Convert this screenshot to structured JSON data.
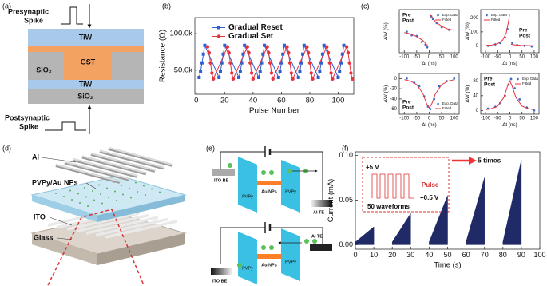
{
  "panels": {
    "a": {
      "label": "(a)",
      "pre": [
        "Presynaptic",
        "Spike"
      ],
      "tiw_top": "TiW",
      "gst": "GST",
      "sio2_mid": "SiO₂",
      "tiw_bottom": "TiW",
      "sio2_bottom": "SiO₂",
      "post": [
        "Postsynaptic",
        "Spike"
      ]
    },
    "b": {
      "label": "(b)"
    },
    "c": {
      "label": "(c)"
    },
    "d": {
      "label": "(d)",
      "al": "Al",
      "pvpy": "PVPy/Au NPs",
      "ito": "ITO",
      "glass": "Glass"
    },
    "e": {
      "label": "(e)",
      "top": {
        "ito": "ITO BE",
        "pvpy_left": "PVPy",
        "au": "Au NPs",
        "pvpy_right": "PVPy",
        "al": "Al TE"
      },
      "bottom": {
        "ito": "ITO BE",
        "pvpy_left": "PVPy",
        "au": "Au NPs",
        "pvpy_right": "PVPy",
        "al": "Al TE"
      }
    },
    "f": {
      "label": "(f)",
      "inset_high": "+5 V",
      "inset_pulse": "Pulse",
      "inset_low": "+0.5 V",
      "inset_count": "50 waveforms",
      "repeat": "5 times"
    }
  },
  "chart_data": [
    {
      "type": "line",
      "x_label": "Pulse Number",
      "y_label": "Resistance (Ω)",
      "xlim": [
        -1,
        111
      ],
      "xticks": [
        0,
        20,
        40,
        60,
        80,
        100
      ],
      "ylim": [
        17000,
        122000
      ],
      "yticks": [
        {
          "value": 50000,
          "label": "50.0k"
        },
        {
          "value": 100000,
          "label": "100.0k"
        }
      ],
      "legend": "upper left",
      "series": [
        {
          "name": "Gradual Reset",
          "color": "#2f5fd0",
          "marker": "square",
          "x": [
            2,
            3,
            4,
            5,
            6,
            16,
            17,
            18,
            19,
            20,
            30,
            31,
            32,
            33,
            34,
            44,
            45,
            46,
            47,
            48,
            58,
            59,
            60,
            61,
            62,
            72,
            73,
            74,
            75,
            76,
            86,
            87,
            88,
            89,
            90,
            100,
            101,
            102,
            103,
            104
          ],
          "values": [
            40000,
            48000,
            60000,
            72000,
            84000,
            40000,
            48000,
            60000,
            72000,
            84000,
            40000,
            48000,
            60000,
            72000,
            84000,
            40000,
            48000,
            60000,
            72000,
            84000,
            40000,
            48000,
            60000,
            72000,
            84000,
            40000,
            48000,
            60000,
            72000,
            84000,
            40000,
            48000,
            60000,
            72000,
            84000,
            40000,
            48000,
            60000,
            72000,
            84000
          ]
        },
        {
          "name": "Gradual Set",
          "color": "#e8323c",
          "marker": "circle",
          "x": [
            8,
            9,
            10,
            11,
            12,
            22,
            23,
            24,
            25,
            26,
            36,
            37,
            38,
            39,
            40,
            50,
            51,
            52,
            53,
            54,
            64,
            65,
            66,
            67,
            68,
            78,
            79,
            80,
            81,
            82,
            92,
            93,
            94,
            95,
            96,
            106,
            107,
            108,
            109,
            110
          ],
          "values": [
            82000,
            74000,
            60000,
            46000,
            38000,
            82000,
            74000,
            60000,
            46000,
            38000,
            82000,
            74000,
            60000,
            46000,
            38000,
            82000,
            74000,
            60000,
            46000,
            38000,
            82000,
            74000,
            60000,
            46000,
            38000,
            82000,
            74000,
            60000,
            46000,
            38000,
            82000,
            74000,
            60000,
            46000,
            38000,
            82000,
            74000,
            60000,
            46000,
            38000
          ]
        }
      ]
    },
    {
      "type": "scatter",
      "x_label": "Δt (ns)",
      "y_label": "ΔW (%)",
      "xlim": [
        -120,
        120
      ],
      "xticks": [
        -100,
        -50,
        0,
        50,
        100
      ],
      "ylim": [
        -80,
        80
      ],
      "legend": "upper right",
      "annotations": [
        "Pre",
        "Post"
      ],
      "series": [
        {
          "name": "Exp. Data",
          "color": "#3b6fc9",
          "draw": "points",
          "x": [
            -90,
            -70,
            -50,
            -30,
            -15,
            -8,
            8,
            15,
            30,
            50,
            80
          ],
          "values": [
            -2,
            -15,
            -18,
            -40,
            -50,
            -60,
            55,
            45,
            30,
            15,
            5
          ]
        },
        {
          "name": "Fitted",
          "color": "#e8323c",
          "draw": "line",
          "x": [
            -100,
            -75,
            -50,
            -25,
            -5,
            0,
            5,
            25,
            50,
            75,
            100
          ],
          "values": [
            -5,
            -10,
            -20,
            -35,
            -55,
            null,
            60,
            35,
            18,
            8,
            3
          ]
        }
      ]
    },
    {
      "type": "scatter",
      "x_label": "Δt (ns)",
      "y_label": "ΔW (%)",
      "xlim": [
        -120,
        120
      ],
      "xticks": [
        -100,
        -50,
        0,
        50,
        100
      ],
      "ylim": [
        -50,
        260
      ],
      "yticks": [
        0,
        100,
        200
      ],
      "legend": "upper left",
      "annotations": [
        "Pre",
        "Post"
      ],
      "series": [
        {
          "name": "Exp. Data",
          "color": "#3b6fc9",
          "draw": "points",
          "x": [
            -90,
            -60,
            -40,
            -20,
            -10,
            10,
            30,
            60,
            90
          ],
          "values": [
            0,
            10,
            20,
            60,
            120,
            20,
            5,
            0,
            -5
          ]
        },
        {
          "name": "Fitted",
          "color": "#e8323c",
          "draw": "line",
          "x": [
            -100,
            -75,
            -50,
            -30,
            -15,
            -5,
            -1,
            0,
            5,
            25,
            50,
            100
          ],
          "values": [
            2,
            5,
            15,
            40,
            90,
            180,
            230,
            null,
            10,
            5,
            2,
            0
          ]
        }
      ]
    },
    {
      "type": "scatter",
      "x_label": "Δt (ns)",
      "y_label": "ΔW (%)",
      "xlim": [
        -120,
        120
      ],
      "xticks": [
        -100,
        -50,
        0,
        50,
        100
      ],
      "ylim": [
        -70,
        10
      ],
      "yticks": [
        -60,
        -40,
        -20,
        0
      ],
      "legend": "lower right",
      "annotations": [
        "Pre",
        "Post"
      ],
      "series": [
        {
          "name": "Exp. Data",
          "color": "#3b6fc9",
          "draw": "points",
          "x": [
            -90,
            -60,
            -40,
            -20,
            -5,
            5,
            20,
            40,
            70,
            100
          ],
          "values": [
            0,
            -8,
            -15,
            -35,
            -55,
            -60,
            -40,
            -15,
            -5,
            0
          ]
        },
        {
          "name": "Fitted",
          "color": "#e8323c",
          "draw": "line",
          "x": [
            -100,
            -75,
            -50,
            -25,
            -10,
            0,
            10,
            25,
            50,
            75,
            100
          ],
          "values": [
            -2,
            -5,
            -12,
            -30,
            -50,
            -58,
            -50,
            -30,
            -12,
            -5,
            -2
          ]
        }
      ]
    },
    {
      "type": "scatter",
      "x_label": "Δt (ns)",
      "y_label": "ΔW (%)",
      "xlim": [
        -120,
        120
      ],
      "xticks": [
        -100,
        -50,
        0,
        50,
        100
      ],
      "ylim": [
        -10,
        100
      ],
      "yticks": [
        0,
        40,
        80
      ],
      "legend": "upper right",
      "annotations": [
        "Pre",
        "Post"
      ],
      "series": [
        {
          "name": "Exp. Data",
          "color": "#3b6fc9",
          "draw": "points",
          "x": [
            -90,
            -60,
            -40,
            -20,
            -5,
            5,
            20,
            40,
            70,
            100
          ],
          "values": [
            5,
            10,
            20,
            40,
            70,
            85,
            60,
            30,
            8,
            0
          ]
        },
        {
          "name": "Fitted",
          "color": "#e8323c",
          "draw": "line",
          "x": [
            -100,
            -75,
            -50,
            -25,
            -10,
            0,
            10,
            25,
            50,
            75,
            100
          ],
          "values": [
            2,
            5,
            12,
            35,
            65,
            80,
            65,
            35,
            12,
            5,
            2
          ]
        }
      ]
    },
    {
      "type": "area",
      "x_label": "Time (s)",
      "y_label": "Current (mA)",
      "color": "#1f2a66",
      "xlim": [
        0,
        100
      ],
      "xticks": [
        0,
        10,
        20,
        30,
        40,
        50,
        60,
        70,
        80,
        90,
        100
      ],
      "ylim": [
        -0.005,
        0.104
      ],
      "yticks": [
        {
          "value": 0,
          "label": "0.00"
        },
        {
          "value": 0.05,
          "label": "0.05"
        },
        {
          "value": 0.1,
          "label": "0.10"
        }
      ],
      "x": [
        0,
        10,
        10,
        null,
        20,
        30,
        30,
        null,
        40,
        50,
        50,
        null,
        60,
        70,
        70,
        null,
        80,
        90,
        90
      ],
      "values": [
        0.003,
        0.02,
        0.003,
        null,
        0.003,
        0.035,
        0.003,
        null,
        0.003,
        0.055,
        0.003,
        null,
        0.003,
        0.075,
        0.003,
        null,
        0.003,
        0.095,
        0.003
      ]
    }
  ]
}
